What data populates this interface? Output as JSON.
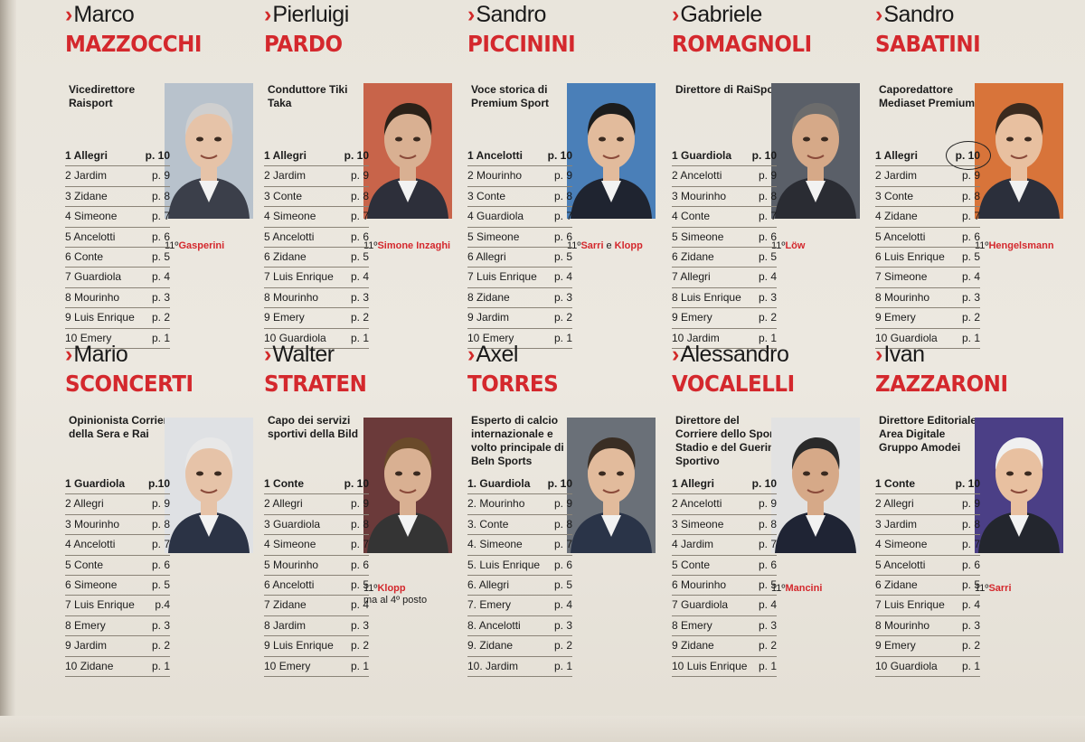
{
  "colors": {
    "accent": "#d4282d",
    "paper": "#ebe7df"
  },
  "cards": [
    {
      "first_name": "Marco",
      "last_name": "MAZZOCCHI",
      "role": "Vicedirettore Raisport",
      "eleventh": {
        "ordinal": "11º",
        "name": "Gasperini"
      },
      "photo_bg": "#b8c2cc",
      "ranking": [
        {
          "rank": "1",
          "name": "Allegri",
          "points": "p. 10"
        },
        {
          "rank": "2",
          "name": "Jardim",
          "points": "p. 9"
        },
        {
          "rank": "3",
          "name": "Zidane",
          "points": "p. 8"
        },
        {
          "rank": "4",
          "name": "Simeone",
          "points": "p. 7"
        },
        {
          "rank": "5",
          "name": "Ancelotti",
          "points": "p. 6"
        },
        {
          "rank": "6",
          "name": "Conte",
          "points": "p. 5"
        },
        {
          "rank": "7",
          "name": "Guardiola",
          "points": "p. 4"
        },
        {
          "rank": "8",
          "name": "Mourinho",
          "points": "p. 3"
        },
        {
          "rank": "9",
          "name": "Luis Enrique",
          "points": "p. 2"
        },
        {
          "rank": "10",
          "name": "Emery",
          "points": "p. 1"
        }
      ]
    },
    {
      "first_name": "Pierluigi",
      "last_name": "PARDO",
      "role": "Conduttore Tiki Taka",
      "eleventh": {
        "ordinal": "11º",
        "name": "Simone Inzaghi"
      },
      "photo_bg": "#c8644a",
      "ranking": [
        {
          "rank": "1",
          "name": "Allegri",
          "points": "p. 10"
        },
        {
          "rank": "2",
          "name": "Jardim",
          "points": "p. 9"
        },
        {
          "rank": "3",
          "name": "Conte",
          "points": "p. 8"
        },
        {
          "rank": "4",
          "name": "Simeone",
          "points": "p. 7"
        },
        {
          "rank": "5",
          "name": "Ancelotti",
          "points": "p. 6"
        },
        {
          "rank": "6",
          "name": "Zidane",
          "points": "p. 5"
        },
        {
          "rank": "7",
          "name": "Luis Enrique",
          "points": "p. 4"
        },
        {
          "rank": "8",
          "name": "Mourinho",
          "points": "p. 3"
        },
        {
          "rank": "9",
          "name": "Emery",
          "points": "p. 2"
        },
        {
          "rank": "10",
          "name": "Guardiola",
          "points": "p. 1"
        }
      ]
    },
    {
      "first_name": "Sandro",
      "last_name": "PICCININI",
      "role": "Voce storica di Premium Sport",
      "eleventh": {
        "ordinal": "11º",
        "name": "Sarri",
        "conj": "e",
        "name2": "Klopp"
      },
      "photo_bg": "#4a7fb8",
      "ranking": [
        {
          "rank": "1",
          "name": "Ancelotti",
          "points": "p. 10"
        },
        {
          "rank": "2",
          "name": "Mourinho",
          "points": "p. 9"
        },
        {
          "rank": "3",
          "name": "Conte",
          "points": "p. 8"
        },
        {
          "rank": "4",
          "name": "Guardiola",
          "points": "p. 7"
        },
        {
          "rank": "5",
          "name": "Simeone",
          "points": "p. 6"
        },
        {
          "rank": "6",
          "name": "Allegri",
          "points": "p. 5"
        },
        {
          "rank": "7",
          "name": "Luis Enrique",
          "points": "p. 4"
        },
        {
          "rank": "8",
          "name": "Zidane",
          "points": "p. 3"
        },
        {
          "rank": "9",
          "name": "Jardim",
          "points": "p. 2"
        },
        {
          "rank": "10",
          "name": "Emery",
          "points": "p. 1"
        }
      ]
    },
    {
      "first_name": "Gabriele",
      "last_name": "ROMAGNOLI",
      "role": "Direttore di RaiSport",
      "eleventh": {
        "ordinal": "11º",
        "name": "Löw"
      },
      "photo_bg": "#5a5f68",
      "ranking": [
        {
          "rank": "1",
          "name": "Guardiola",
          "points": "p. 10"
        },
        {
          "rank": "2",
          "name": "Ancelotti",
          "points": "p. 9"
        },
        {
          "rank": "3",
          "name": "Mourinho",
          "points": "p. 8"
        },
        {
          "rank": "4",
          "name": "Conte",
          "points": "p. 7"
        },
        {
          "rank": "5",
          "name": "Simeone",
          "points": "p. 6"
        },
        {
          "rank": "6",
          "name": "Zidane",
          "points": "p. 5"
        },
        {
          "rank": "7",
          "name": "Allegri",
          "points": "p. 4"
        },
        {
          "rank": "8",
          "name": "Luis Enrique",
          "points": "p. 3"
        },
        {
          "rank": "9",
          "name": "Emery",
          "points": "p. 2"
        },
        {
          "rank": "10",
          "name": "Jardim",
          "points": "p. 1"
        }
      ]
    },
    {
      "first_name": "Sandro",
      "last_name": "SABATINI",
      "role": "Caporedattore Mediaset Premium",
      "eleventh": {
        "ordinal": "11º",
        "name": "Hengelsmann"
      },
      "photo_bg": "#d8743a",
      "circled_first": true,
      "ranking": [
        {
          "rank": "1",
          "name": "Allegri",
          "points": "p. 10"
        },
        {
          "rank": "2",
          "name": "Jardim",
          "points": "p. 9"
        },
        {
          "rank": "3",
          "name": "Conte",
          "points": "p. 8"
        },
        {
          "rank": "4",
          "name": "Zidane",
          "points": "p. 7"
        },
        {
          "rank": "5",
          "name": "Ancelotti",
          "points": "p. 6"
        },
        {
          "rank": "6",
          "name": "Luis Enrique",
          "points": "p. 5"
        },
        {
          "rank": "7",
          "name": "Simeone",
          "points": "p. 4"
        },
        {
          "rank": "8",
          "name": "Mourinho",
          "points": "p. 3"
        },
        {
          "rank": "9",
          "name": "Emery",
          "points": "p. 2"
        },
        {
          "rank": "10",
          "name": "Guardiola",
          "points": "p. 1"
        }
      ]
    },
    {
      "first_name": "Mario",
      "last_name": "SCONCERTI",
      "role": "Opinionista Corriere della Sera e Rai",
      "eleventh": null,
      "photo_bg": "#dfe1e4",
      "ranking": [
        {
          "rank": "1",
          "name": "Guardiola",
          "points": "p.10"
        },
        {
          "rank": "2",
          "name": "Allegri",
          "points": "p. 9"
        },
        {
          "rank": "3",
          "name": "Mourinho",
          "points": "p. 8"
        },
        {
          "rank": "4",
          "name": "Ancelotti",
          "points": "p. 7"
        },
        {
          "rank": "5",
          "name": "Conte",
          "points": "p. 6"
        },
        {
          "rank": "6",
          "name": "Simeone",
          "points": "p. 5"
        },
        {
          "rank": "7",
          "name": "Luis Enrique",
          "points": "p.4"
        },
        {
          "rank": "8",
          "name": "Emery",
          "points": "p. 3"
        },
        {
          "rank": "9",
          "name": "Jardim",
          "points": "p. 2"
        },
        {
          "rank": "10",
          "name": "Zidane",
          "points": "p. 1"
        }
      ]
    },
    {
      "first_name": "Walter",
      "last_name": "STRATEN",
      "role": "Capo dei servizi sportivi della Bild",
      "eleventh": {
        "ordinal": "11º",
        "name": "Klopp",
        "note": "ma al 4º posto"
      },
      "photo_bg": "#6b3a3a",
      "ranking": [
        {
          "rank": "1",
          "name": "Conte",
          "points": "p. 10"
        },
        {
          "rank": "2",
          "name": "Allegri",
          "points": "p. 9"
        },
        {
          "rank": "3",
          "name": "Guardiola",
          "points": "p. 8"
        },
        {
          "rank": "4",
          "name": "Simeone",
          "points": "p. 7"
        },
        {
          "rank": "5",
          "name": "Mourinho",
          "points": "p. 6"
        },
        {
          "rank": "6",
          "name": "Ancelotti",
          "points": "p. 5"
        },
        {
          "rank": "7",
          "name": "Zidane",
          "points": "p. 4"
        },
        {
          "rank": "8",
          "name": "Jardim",
          "points": "p. 3"
        },
        {
          "rank": "9",
          "name": "Luis Enrique",
          "points": "p. 2"
        },
        {
          "rank": "10",
          "name": "Emery",
          "points": "p. 1"
        }
      ]
    },
    {
      "first_name": "Axel",
      "last_name": "TORRES",
      "role": "Esperto di calcio internazionale e volto principale di BeIn Sports",
      "eleventh": null,
      "photo_bg": "#6a7078",
      "ranking": [
        {
          "rank": "1.",
          "name": "Guardiola",
          "points": "p. 10"
        },
        {
          "rank": "2.",
          "name": "Mourinho",
          "points": "p. 9"
        },
        {
          "rank": "3.",
          "name": "Conte",
          "points": "p. 8"
        },
        {
          "rank": "4.",
          "name": "Simeone",
          "points": "p. 7"
        },
        {
          "rank": "5.",
          "name": "Luis Enrique",
          "points": "p. 6"
        },
        {
          "rank": "6.",
          "name": "Allegri",
          "points": "p. 5"
        },
        {
          "rank": "7.",
          "name": "Emery",
          "points": "p. 4"
        },
        {
          "rank": "8.",
          "name": "Ancelotti",
          "points": "p. 3"
        },
        {
          "rank": "9.",
          "name": "Zidane",
          "points": "p. 2"
        },
        {
          "rank": "10.",
          "name": "Jardim",
          "points": "p. 1"
        }
      ]
    },
    {
      "first_name": "Alessandro",
      "last_name": "VOCALELLI",
      "role": "Direttore del Corriere dello Sport-Stadio e del Guerin Sportivo",
      "eleventh": {
        "ordinal": "11º",
        "name": "Mancini"
      },
      "photo_bg": "#e2e2e2",
      "ranking": [
        {
          "rank": "1",
          "name": "Allegri",
          "points": "p. 10"
        },
        {
          "rank": "2",
          "name": "Ancelotti",
          "points": "p. 9"
        },
        {
          "rank": "3",
          "name": "Simeone",
          "points": "p. 8"
        },
        {
          "rank": "4",
          "name": "Jardim",
          "points": "p. 7"
        },
        {
          "rank": "5",
          "name": "Conte",
          "points": "p. 6"
        },
        {
          "rank": "6",
          "name": "Mourinho",
          "points": "p. 5"
        },
        {
          "rank": "7",
          "name": "Guardiola",
          "points": "p. 4"
        },
        {
          "rank": "8",
          "name": "Emery",
          "points": "p. 3"
        },
        {
          "rank": "9",
          "name": "Zidane",
          "points": "p. 2"
        },
        {
          "rank": "10",
          "name": "Luis Enrique",
          "points": "p. 1"
        }
      ]
    },
    {
      "first_name": "Ivan",
      "last_name": "ZAZZARONI",
      "role": "Direttore Editoriale Area Digitale Gruppo Amodei",
      "eleventh": {
        "ordinal": "11º",
        "name": "Sarri"
      },
      "photo_bg": "#4b3f86",
      "ranking": [
        {
          "rank": "1",
          "name": "Conte",
          "points": "p. 10"
        },
        {
          "rank": "2",
          "name": "Allegri",
          "points": "p. 9"
        },
        {
          "rank": "3",
          "name": "Jardim",
          "points": "p. 8"
        },
        {
          "rank": "4",
          "name": "Simeone",
          "points": "p. 7"
        },
        {
          "rank": "5",
          "name": "Ancelotti",
          "points": "p. 6"
        },
        {
          "rank": "6",
          "name": "Zidane",
          "points": "p. 5"
        },
        {
          "rank": "7",
          "name": "Luis Enrique",
          "points": "p. 4"
        },
        {
          "rank": "8",
          "name": "Mourinho",
          "points": "p. 3"
        },
        {
          "rank": "9",
          "name": "Emery",
          "points": "p. 2"
        },
        {
          "rank": "10",
          "name": "Guardiola",
          "points": "p. 1"
        }
      ]
    }
  ]
}
